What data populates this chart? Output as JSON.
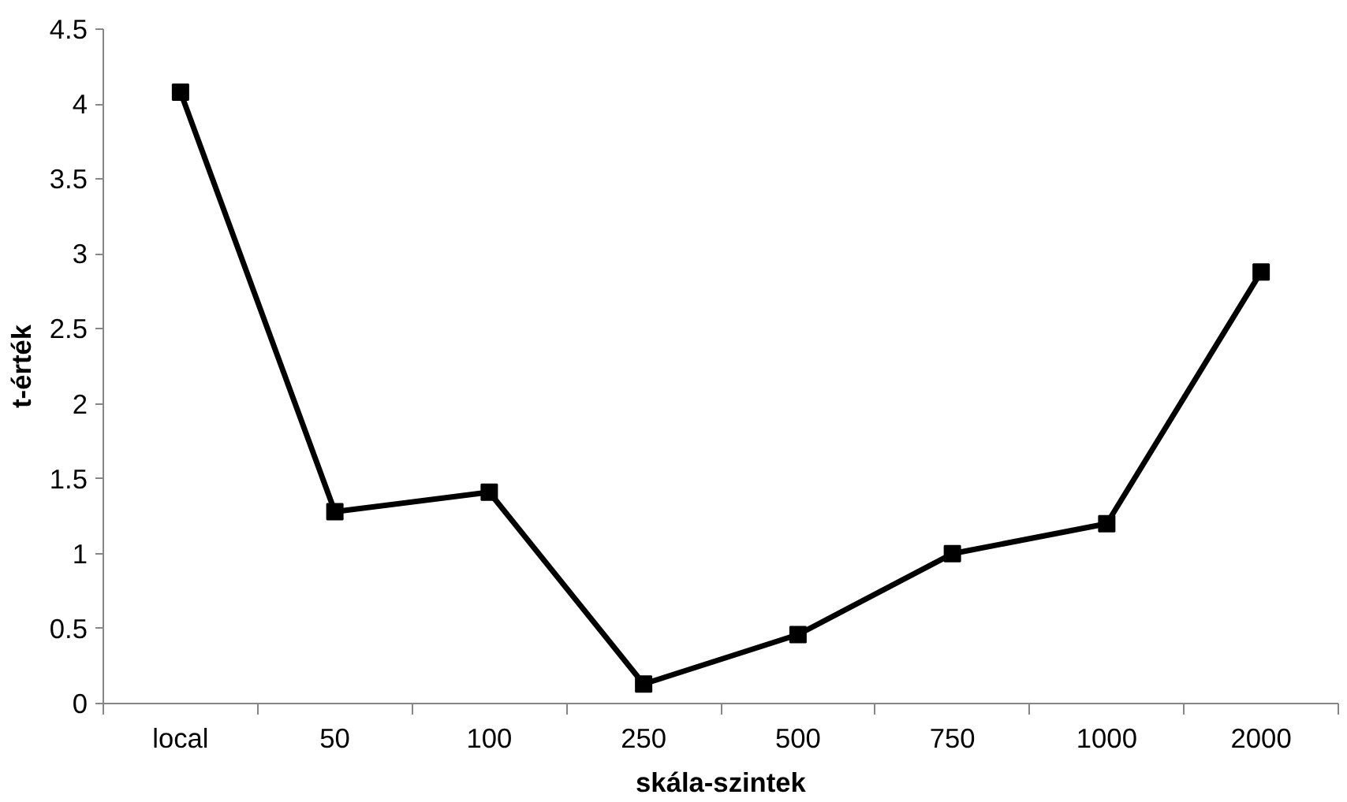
{
  "chart_data": {
    "type": "line",
    "xlabel": "skála-szintek",
    "ylabel": "t-érték",
    "categories": [
      "local",
      "50",
      "100",
      "250",
      "500",
      "750",
      "1000",
      "2000"
    ],
    "series": [
      {
        "color": "#000000",
        "values": [
          4.08,
          1.28,
          1.41,
          0.13,
          0.46,
          1.0,
          1.2,
          2.88
        ]
      }
    ],
    "ylim": [
      0,
      4.5
    ],
    "yticks": [
      0,
      0.5,
      1,
      1.5,
      2,
      2.5,
      3,
      3.5,
      4,
      4.5
    ],
    "grid": false,
    "marker": "square",
    "line_style": "solid"
  }
}
